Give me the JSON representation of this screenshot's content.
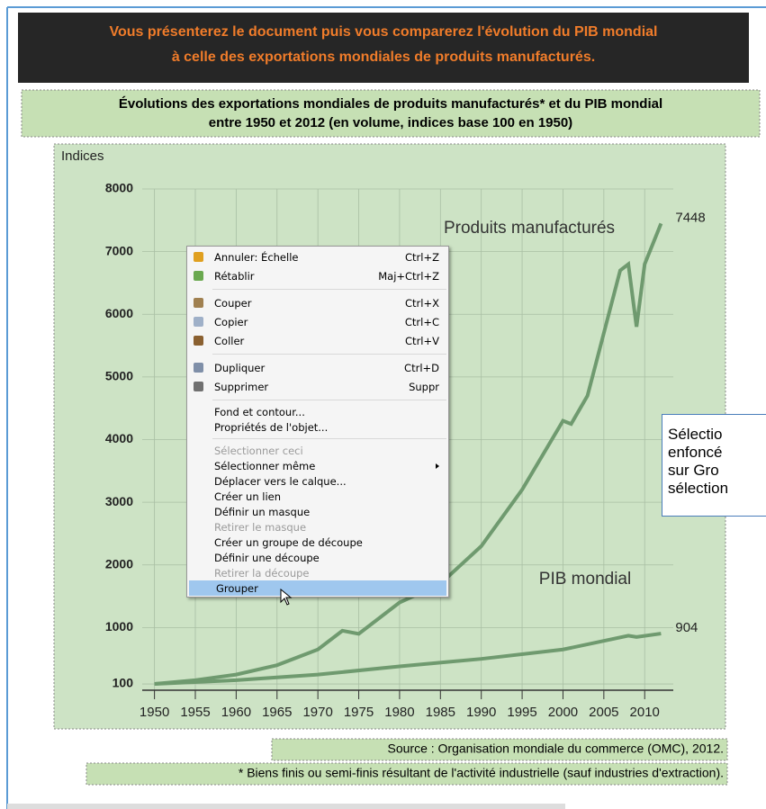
{
  "header": {
    "lines": [
      "Vous présenterez le document puis vous comparerez l'évolution du PIB mondial",
      "à celle des exportations mondiales de produits manufacturés."
    ]
  },
  "figure_title": {
    "lines": [
      "Évolutions des exportations mondiales de produits manufacturés* et du PIB mondial",
      "entre 1950 et 2012 (en volume, indices base 100 en 1950)"
    ]
  },
  "chart_data": {
    "type": "line",
    "ylabel": "Indices",
    "xlim": [
      1948.5,
      2013.5
    ],
    "ylim": [
      0,
      8000
    ],
    "xticks": [
      1950,
      1955,
      1960,
      1965,
      1970,
      1975,
      1980,
      1985,
      1990,
      1995,
      2000,
      2005,
      2010
    ],
    "yticks": [
      100,
      1000,
      2000,
      3000,
      4000,
      5000,
      6000,
      7000,
      8000
    ],
    "grid": true,
    "series": [
      {
        "name": "Produits manufacturés",
        "color": "#6f9a6f",
        "end_label": "7448",
        "x": [
          1950,
          1955,
          1960,
          1965,
          1970,
          1973,
          1975,
          1980,
          1985,
          1990,
          1995,
          2000,
          2001,
          2003,
          2005,
          2007,
          2008,
          2009,
          2010,
          2012
        ],
        "values": [
          100,
          160,
          250,
          400,
          650,
          950,
          900,
          1400,
          1700,
          2300,
          3200,
          4300,
          4250,
          4700,
          5700,
          6700,
          6800,
          5800,
          6800,
          7448
        ]
      },
      {
        "name": "PIB mondial",
        "color": "#6f9a6f",
        "end_label": "904",
        "x": [
          1950,
          1960,
          1970,
          1980,
          1990,
          2000,
          2008,
          2009,
          2012
        ],
        "values": [
          100,
          160,
          250,
          380,
          500,
          650,
          870,
          850,
          904
        ]
      }
    ]
  },
  "source": "Source : Organisation mondiale du commerce (OMC), 2012.",
  "footnote": "* Biens finis ou semi-finis résultant de l'activité industrielle (sauf industries d'extraction).",
  "context_menu": {
    "groups": [
      [
        {
          "label": "Annuler: Échelle",
          "shortcut": "Ctrl+Z",
          "icon": "#e0a020"
        },
        {
          "label": "Rétablir",
          "shortcut": "Maj+Ctrl+Z",
          "icon": "#6aa84f"
        }
      ],
      [
        {
          "label": "Couper",
          "shortcut": "Ctrl+X",
          "icon": "#a08050"
        },
        {
          "label": "Copier",
          "shortcut": "Ctrl+C",
          "icon": "#9fb0c8"
        },
        {
          "label": "Coller",
          "shortcut": "Ctrl+V",
          "icon": "#8a6030"
        }
      ],
      [
        {
          "label": "Dupliquer",
          "shortcut": "Ctrl+D",
          "icon": "#7f8fa8"
        },
        {
          "label": "Supprimer",
          "shortcut": "Suppr",
          "icon": "#707070"
        }
      ],
      [
        {
          "label": "Fond et contour..."
        },
        {
          "label": "Propriétés de l'objet..."
        }
      ],
      [
        {
          "label": "Sélectionner ceci",
          "disabled": true
        },
        {
          "label": "Sélectionner même",
          "submenu": true
        },
        {
          "label": "Déplacer vers le calque..."
        },
        {
          "label": "Créer un lien"
        },
        {
          "label": "Définir un masque"
        },
        {
          "label": "Retirer le masque",
          "disabled": true
        },
        {
          "label": "Créer un groupe de découpe"
        },
        {
          "label": "Définir une découpe"
        },
        {
          "label": "Retirer la découpe",
          "disabled": true
        },
        {
          "label": "Grouper",
          "highlighted": true
        }
      ]
    ]
  },
  "tooltip": {
    "lines": [
      "Sélectio",
      "enfoncé",
      "sur Gro",
      "sélection"
    ]
  }
}
